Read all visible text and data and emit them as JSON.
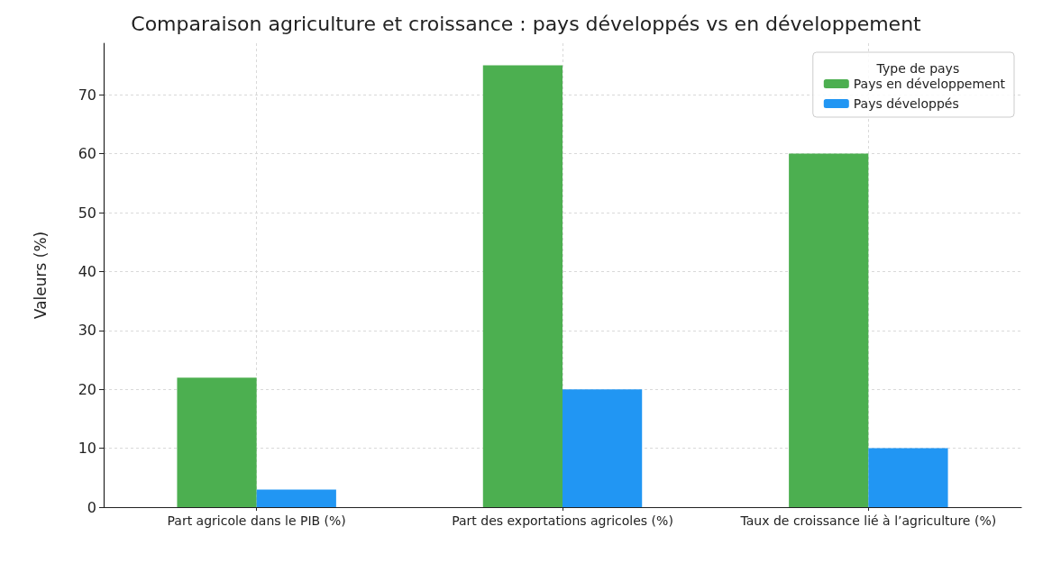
{
  "chart_data": {
    "type": "bar",
    "title": "Comparaison agriculture et croissance : pays développés vs en développement",
    "ylabel": "Valeurs (%)",
    "legend_title": "Type de pays",
    "categories": [
      "Part agricole dans le PIB (%)",
      "Part des exportations agricoles (%)",
      "Taux de croissance lié à l’agriculture (%)"
    ],
    "series": [
      {
        "name": "Pays en développement",
        "color": "#4caf50",
        "values": [
          22,
          75,
          60
        ]
      },
      {
        "name": "Pays développés",
        "color": "#2196f3",
        "values": [
          3,
          20,
          10
        ]
      }
    ],
    "ylim": [
      0,
      78.75
    ],
    "yticks": [
      0,
      10,
      20,
      30,
      40,
      50,
      60,
      70
    ],
    "grid": true,
    "legend": "top right"
  }
}
